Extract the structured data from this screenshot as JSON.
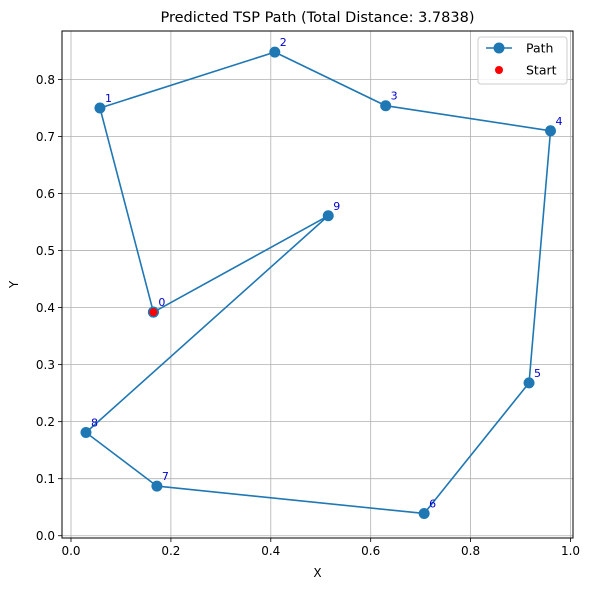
{
  "chart_data": {
    "type": "line",
    "title": "Predicted TSP Path (Total Distance: 3.7838)",
    "xlabel": "X",
    "ylabel": "Y",
    "xlim": [
      -0.018,
      1.005
    ],
    "ylim": [
      -0.004,
      0.885
    ],
    "xticks": [
      0.0,
      0.2,
      0.4,
      0.6,
      0.8,
      1.0
    ],
    "xtick_labels": [
      "0.0",
      "0.2",
      "0.4",
      "0.6",
      "0.8",
      "1.0"
    ],
    "yticks": [
      0.0,
      0.1,
      0.2,
      0.3,
      0.4,
      0.5,
      0.6,
      0.7,
      0.8
    ],
    "ytick_labels": [
      "0.0",
      "0.1",
      "0.2",
      "0.3",
      "0.4",
      "0.5",
      "0.6",
      "0.7",
      "0.8"
    ],
    "grid": true,
    "legend_position": "top-right",
    "nodes": [
      {
        "label": "0",
        "x": 0.165,
        "y": 0.392
      },
      {
        "label": "1",
        "x": 0.058,
        "y": 0.75
      },
      {
        "label": "2",
        "x": 0.408,
        "y": 0.848
      },
      {
        "label": "3",
        "x": 0.63,
        "y": 0.754
      },
      {
        "label": "4",
        "x": 0.96,
        "y": 0.71
      },
      {
        "label": "5",
        "x": 0.917,
        "y": 0.268
      },
      {
        "label": "6",
        "x": 0.707,
        "y": 0.039
      },
      {
        "label": "7",
        "x": 0.172,
        "y": 0.087
      },
      {
        "label": "8",
        "x": 0.03,
        "y": 0.181
      },
      {
        "label": "9",
        "x": 0.515,
        "y": 0.561
      }
    ],
    "series": [
      {
        "name": "Path",
        "type": "line",
        "color": "#1f77b4",
        "x": [
          0.165,
          0.058,
          0.408,
          0.63,
          0.96,
          0.917,
          0.707,
          0.172,
          0.03,
          0.515,
          0.165
        ],
        "y": [
          0.392,
          0.75,
          0.848,
          0.754,
          0.71,
          0.268,
          0.039,
          0.087,
          0.181,
          0.561,
          0.392
        ]
      },
      {
        "name": "Start",
        "type": "scatter",
        "color": "#ff0000",
        "x": [
          0.165
        ],
        "y": [
          0.392
        ]
      }
    ]
  }
}
